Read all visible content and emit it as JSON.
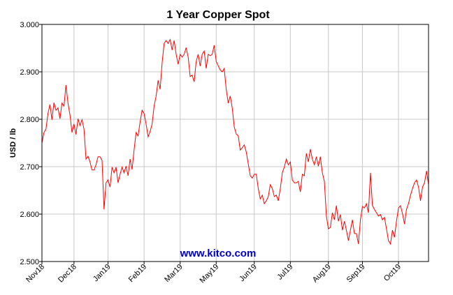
{
  "chart_data": {
    "type": "line",
    "title": "1 Year Copper Spot",
    "y_label": "USD / lb",
    "watermark": "www.kitco.com",
    "color": "#ff0000",
    "grid": true,
    "xlim": [
      0,
      193
    ],
    "xticks": [
      {
        "value": 0,
        "label": "Nov18"
      },
      {
        "value": 16,
        "label": "Dec18"
      },
      {
        "value": 33,
        "label": "Jan19"
      },
      {
        "value": 51,
        "label": "Feb19"
      },
      {
        "value": 69,
        "label": "Mar19"
      },
      {
        "value": 87,
        "label": "May19"
      },
      {
        "value": 106,
        "label": "Jun19"
      },
      {
        "value": 124,
        "label": "Jul19"
      },
      {
        "value": 143,
        "label": "Aug19"
      },
      {
        "value": 160,
        "label": "Sep19"
      },
      {
        "value": 178,
        "label": "Oct19"
      }
    ],
    "ylim": [
      2.5,
      3.0
    ],
    "yticks": [
      {
        "value": 2.5,
        "label": "2.500"
      },
      {
        "value": 2.6,
        "label": "2.600"
      },
      {
        "value": 2.7,
        "label": "2.700"
      },
      {
        "value": 2.8,
        "label": "2.800"
      },
      {
        "value": 2.9,
        "label": "2.900"
      },
      {
        "value": 3.0,
        "label": "3.000"
      }
    ],
    "values": [
      2.75,
      2.772,
      2.779,
      2.812,
      2.831,
      2.799,
      2.835,
      2.819,
      2.824,
      2.801,
      2.834,
      2.828,
      2.872,
      2.834,
      2.809,
      2.772,
      2.79,
      2.768,
      2.801,
      2.787,
      2.799,
      2.779,
      2.716,
      2.722,
      2.71,
      2.693,
      2.693,
      2.704,
      2.721,
      2.721,
      2.713,
      2.61,
      2.666,
      2.672,
      2.657,
      2.699,
      2.687,
      2.699,
      2.666,
      2.684,
      2.699,
      2.687,
      2.701,
      2.681,
      2.716,
      2.694,
      2.735,
      2.772,
      2.765,
      2.794,
      2.819,
      2.812,
      2.79,
      2.763,
      2.774,
      2.79,
      2.828,
      2.849,
      2.882,
      2.863,
      2.919,
      2.96,
      2.966,
      2.96,
      2.968,
      2.946,
      2.966,
      2.937,
      2.916,
      2.937,
      2.931,
      2.937,
      2.951,
      2.931,
      2.89,
      2.893,
      2.879,
      2.922,
      2.937,
      2.912,
      2.937,
      2.944,
      2.907,
      2.937,
      2.934,
      2.937,
      2.956,
      2.922,
      2.913,
      2.904,
      2.9,
      2.907,
      2.863,
      2.834,
      2.849,
      2.824,
      2.784,
      2.769,
      2.765,
      2.735,
      2.74,
      2.746,
      2.731,
      2.706,
      2.681,
      2.676,
      2.684,
      2.684,
      2.654,
      2.632,
      2.64,
      2.622,
      2.628,
      2.637,
      2.662,
      2.654,
      2.637,
      2.64,
      2.628,
      2.654,
      2.687,
      2.699,
      2.716,
      2.704,
      2.71,
      2.672,
      2.666,
      2.666,
      2.669,
      2.647,
      2.684,
      2.681,
      2.728,
      2.71,
      2.737,
      2.716,
      2.704,
      2.721,
      2.701,
      2.721,
      2.687,
      2.669,
      2.596,
      2.569,
      2.572,
      2.603,
      2.588,
      2.618,
      2.585,
      2.599,
      2.566,
      2.585,
      2.566,
      2.544,
      2.566,
      2.588,
      2.559,
      2.559,
      2.537,
      2.588,
      2.616,
      2.613,
      2.622,
      2.603,
      2.687,
      2.618,
      2.61,
      2.603,
      2.596,
      2.599,
      2.588,
      2.593,
      2.569,
      2.544,
      2.537,
      2.566,
      2.551,
      2.585,
      2.613,
      2.618,
      2.601,
      2.579,
      2.61,
      2.622,
      2.64,
      2.654,
      2.666,
      2.672,
      2.657,
      2.628,
      2.657,
      2.666,
      2.691,
      2.662
    ]
  }
}
